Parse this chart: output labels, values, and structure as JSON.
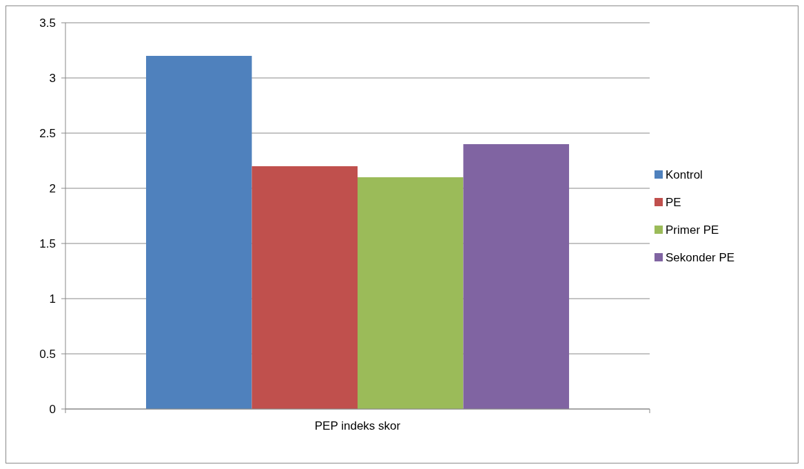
{
  "chart_data": {
    "type": "bar",
    "categories": [
      "PEP indeks skor"
    ],
    "series": [
      {
        "name": "Kontrol",
        "color": "#4f81bd",
        "values": [
          3.2
        ]
      },
      {
        "name": "PE",
        "color": "#c0504d",
        "values": [
          2.2
        ]
      },
      {
        "name": "Primer PE",
        "color": "#9bbb59",
        "values": [
          2.1
        ]
      },
      {
        "name": "Sekonder PE",
        "color": "#8064a2",
        "values": [
          2.4
        ]
      }
    ],
    "ylim": [
      0,
      3.5
    ],
    "yticks": [
      0,
      0.5,
      1,
      1.5,
      2,
      2.5,
      3,
      3.5
    ],
    "grid": "y",
    "legend": "right"
  }
}
